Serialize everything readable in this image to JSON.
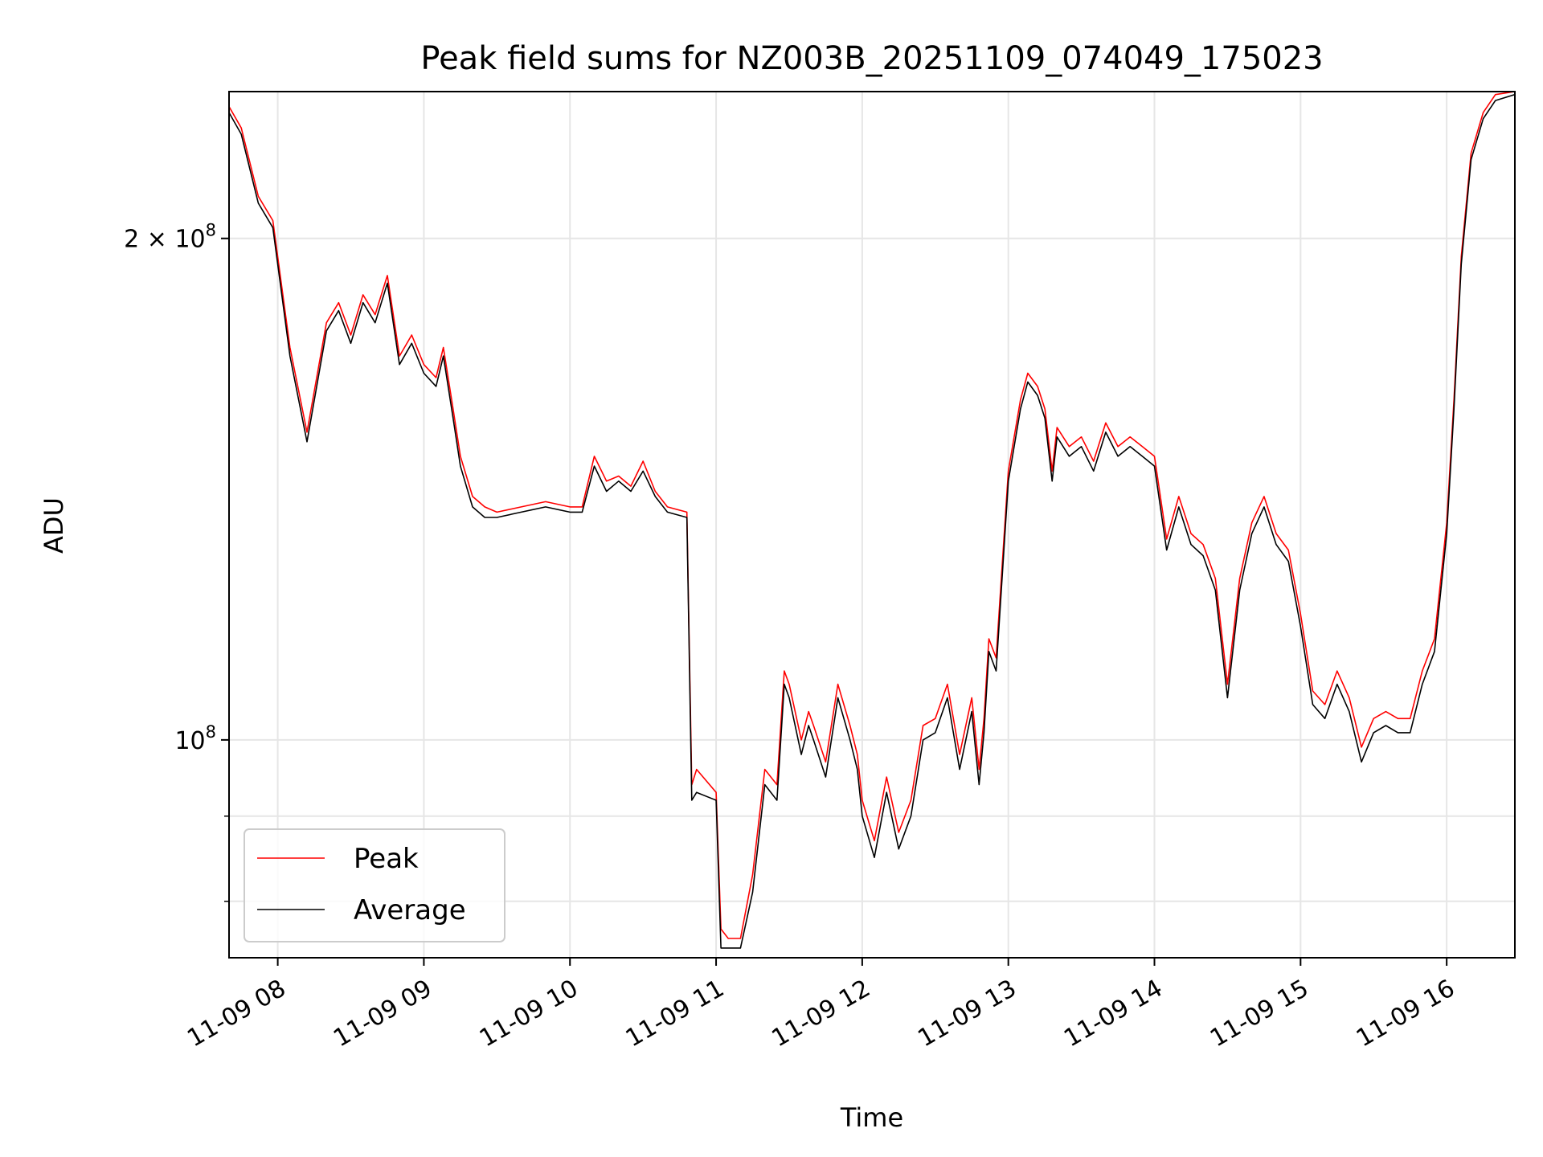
{
  "chart_data": {
    "type": "line",
    "title": "Peak field sums for NZ003B_20251109_074049_175023",
    "xlabel": "Time",
    "ylabel": "ADU",
    "x_scale": "time",
    "y_scale": "log",
    "xlim": [
      "2025-11-09 07:40",
      "2025-11-09 16:28"
    ],
    "ylim": [
      74000000,
      245000000
    ],
    "grid": true,
    "legend_position": "lower-left",
    "x_ticks": [
      {
        "value": "2025-11-09 08:00",
        "label": "11-09 08"
      },
      {
        "value": "2025-11-09 09:00",
        "label": "11-09 09"
      },
      {
        "value": "2025-11-09 10:00",
        "label": "11-09 10"
      },
      {
        "value": "2025-11-09 11:00",
        "label": "11-09 11"
      },
      {
        "value": "2025-11-09 12:00",
        "label": "11-09 12"
      },
      {
        "value": "2025-11-09 13:00",
        "label": "11-09 13"
      },
      {
        "value": "2025-11-09 14:00",
        "label": "11-09 14"
      },
      {
        "value": "2025-11-09 15:00",
        "label": "11-09 15"
      },
      {
        "value": "2025-11-09 16:00",
        "label": "11-09 16"
      }
    ],
    "y_major_ticks": [
      {
        "value": 100000000,
        "base": "10",
        "exp": "8",
        "mantissa": ""
      },
      {
        "value": 200000000,
        "base": "10",
        "exp": "8",
        "mantissa": "2 × "
      }
    ],
    "y_minor_ticks": [
      80000000,
      90000000
    ],
    "series": [
      {
        "name": "Peak",
        "color": "#ff0000",
        "x": [
          "07:40",
          "07:45",
          "07:52",
          "07:58",
          "08:05",
          "08:12",
          "08:20",
          "08:25",
          "08:30",
          "08:35",
          "08:40",
          "08:45",
          "08:50",
          "08:55",
          "09:00",
          "09:05",
          "09:08",
          "09:12",
          "09:15",
          "09:20",
          "09:25",
          "09:30",
          "09:40",
          "09:50",
          "10:00",
          "10:05",
          "10:10",
          "10:15",
          "10:20",
          "10:25",
          "10:30",
          "10:35",
          "10:40",
          "10:48",
          "10:50",
          "10:52",
          "11:00",
          "11:02",
          "11:05",
          "11:10",
          "11:15",
          "11:20",
          "11:25",
          "11:28",
          "11:30",
          "11:35",
          "11:38",
          "11:40",
          "11:45",
          "11:50",
          "11:55",
          "11:58",
          "12:00",
          "12:05",
          "12:10",
          "12:15",
          "12:20",
          "12:25",
          "12:30",
          "12:35",
          "12:40",
          "12:45",
          "12:48",
          "12:50",
          "12:52",
          "12:55",
          "13:00",
          "13:05",
          "13:08",
          "13:12",
          "13:15",
          "13:18",
          "13:20",
          "13:25",
          "13:30",
          "13:35",
          "13:40",
          "13:45",
          "13:50",
          "13:55",
          "14:00",
          "14:05",
          "14:10",
          "14:15",
          "14:20",
          "14:25",
          "14:30",
          "14:35",
          "14:40",
          "14:45",
          "14:50",
          "14:55",
          "15:00",
          "15:05",
          "15:10",
          "15:15",
          "15:20",
          "15:25",
          "15:30",
          "15:35",
          "15:40",
          "15:45",
          "15:50",
          "15:55",
          "16:00",
          "16:03",
          "16:06",
          "16:10",
          "16:15",
          "16:20",
          "16:28"
        ],
        "values": [
          240000000,
          233000000,
          212000000,
          205000000,
          172000000,
          153000000,
          178000000,
          183000000,
          175000000,
          185000000,
          180000000,
          190000000,
          170000000,
          175000000,
          168000000,
          165000000,
          172000000,
          158000000,
          148000000,
          140000000,
          138000000,
          137000000,
          138000000,
          139000000,
          138000000,
          138000000,
          148000000,
          143000000,
          144000000,
          142000000,
          147000000,
          141000000,
          138000000,
          137000000,
          94000000,
          96000000,
          93000000,
          77000000,
          76000000,
          76000000,
          83000000,
          96000000,
          94000000,
          110000000,
          108000000,
          100000000,
          104000000,
          102000000,
          97000000,
          108000000,
          102000000,
          98000000,
          92000000,
          87000000,
          95000000,
          88000000,
          92000000,
          102000000,
          103000000,
          108000000,
          98000000,
          106000000,
          96000000,
          103000000,
          115000000,
          112000000,
          145000000,
          160000000,
          166000000,
          163000000,
          158000000,
          145000000,
          154000000,
          150000000,
          152000000,
          147000000,
          155000000,
          150000000,
          152000000,
          150000000,
          148000000,
          132000000,
          140000000,
          133000000,
          131000000,
          125000000,
          108000000,
          125000000,
          135000000,
          140000000,
          133000000,
          130000000,
          119000000,
          107000000,
          105000000,
          110000000,
          106000000,
          99000000,
          103000000,
          104000000,
          103000000,
          103000000,
          110000000,
          115000000,
          135000000,
          160000000,
          195000000,
          225000000,
          238000000,
          244000000,
          245000000
        ]
      },
      {
        "name": "Average",
        "color": "#000000",
        "x": [
          "07:40",
          "07:45",
          "07:52",
          "07:58",
          "08:05",
          "08:12",
          "08:20",
          "08:25",
          "08:30",
          "08:35",
          "08:40",
          "08:45",
          "08:50",
          "08:55",
          "09:00",
          "09:05",
          "09:08",
          "09:12",
          "09:15",
          "09:20",
          "09:25",
          "09:30",
          "09:40",
          "09:50",
          "10:00",
          "10:05",
          "10:10",
          "10:15",
          "10:20",
          "10:25",
          "10:30",
          "10:35",
          "10:40",
          "10:48",
          "10:50",
          "10:52",
          "11:00",
          "11:02",
          "11:05",
          "11:10",
          "11:15",
          "11:20",
          "11:25",
          "11:28",
          "11:30",
          "11:35",
          "11:38",
          "11:40",
          "11:45",
          "11:50",
          "11:55",
          "11:58",
          "12:00",
          "12:05",
          "12:10",
          "12:15",
          "12:20",
          "12:25",
          "12:30",
          "12:35",
          "12:40",
          "12:45",
          "12:48",
          "12:50",
          "12:52",
          "12:55",
          "13:00",
          "13:05",
          "13:08",
          "13:12",
          "13:15",
          "13:18",
          "13:20",
          "13:25",
          "13:30",
          "13:35",
          "13:40",
          "13:45",
          "13:50",
          "13:55",
          "14:00",
          "14:05",
          "14:10",
          "14:15",
          "14:20",
          "14:25",
          "14:30",
          "14:35",
          "14:40",
          "14:45",
          "14:50",
          "14:55",
          "15:00",
          "15:05",
          "15:10",
          "15:15",
          "15:20",
          "15:25",
          "15:30",
          "15:35",
          "15:40",
          "15:45",
          "15:50",
          "15:55",
          "16:00",
          "16:03",
          "16:06",
          "16:10",
          "16:15",
          "16:20",
          "16:28"
        ],
        "values": [
          238000000,
          231000000,
          210000000,
          203000000,
          170000000,
          151000000,
          176000000,
          181000000,
          173000000,
          183000000,
          178000000,
          188000000,
          168000000,
          173000000,
          166000000,
          163000000,
          170000000,
          156000000,
          146000000,
          138000000,
          136000000,
          136000000,
          137000000,
          138000000,
          137000000,
          137000000,
          146000000,
          141000000,
          143000000,
          141000000,
          145000000,
          140000000,
          137000000,
          136000000,
          92000000,
          93000000,
          92000000,
          75000000,
          75000000,
          75000000,
          81000000,
          94000000,
          92000000,
          108000000,
          106000000,
          98000000,
          102000000,
          100000000,
          95000000,
          106000000,
          100000000,
          96000000,
          90000000,
          85000000,
          93000000,
          86000000,
          90000000,
          100000000,
          101000000,
          106000000,
          96000000,
          104000000,
          94000000,
          101000000,
          113000000,
          110000000,
          143000000,
          158000000,
          164000000,
          161000000,
          156000000,
          143000000,
          152000000,
          148000000,
          150000000,
          145000000,
          153000000,
          148000000,
          150000000,
          148000000,
          146000000,
          130000000,
          138000000,
          131000000,
          129000000,
          123000000,
          106000000,
          123000000,
          133000000,
          138000000,
          131000000,
          128000000,
          117000000,
          105000000,
          103000000,
          108000000,
          104000000,
          97000000,
          101000000,
          102000000,
          101000000,
          101000000,
          108000000,
          113000000,
          133000000,
          158000000,
          193000000,
          223000000,
          236000000,
          242000000,
          244000000
        ]
      }
    ]
  }
}
